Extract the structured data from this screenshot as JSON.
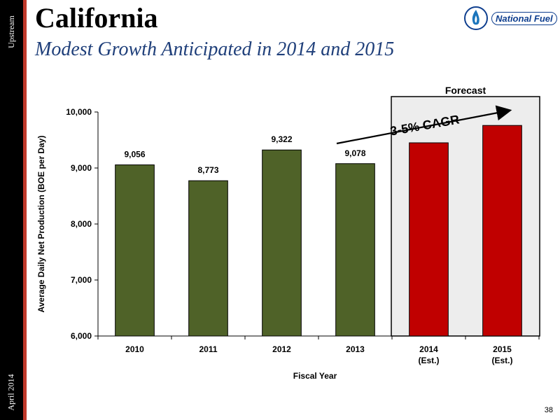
{
  "sidebar": {
    "top_label": "Upstream",
    "bottom_label": "April 2014"
  },
  "header": {
    "title": "California",
    "subtitle": "Modest Growth Anticipated in 2014 and 2015"
  },
  "logo": {
    "text": "National Fuel"
  },
  "page_number": "38",
  "colors": {
    "actual": "#4f6228",
    "forecast": "#c00000",
    "forecast_box": "#ededed",
    "subtitle": "#1f3f7a",
    "sidebar_stripe": "#c0392b"
  },
  "chart_data": {
    "type": "bar",
    "categories": [
      "2010",
      "2011",
      "2012",
      "2013",
      "2014\n(Est.)",
      "2015\n(Est.)"
    ],
    "values": [
      9056,
      8773,
      9322,
      9078,
      9450,
      9760
    ],
    "data_labels": [
      "9,056",
      "8,773",
      "9,322",
      "9,078",
      "",
      ""
    ],
    "is_forecast": [
      false,
      false,
      false,
      false,
      true,
      true
    ],
    "xlabel": "Fiscal Year",
    "ylabel": "Average Daily Net Production (BOE per Day)",
    "ylim": [
      6000,
      10000
    ],
    "yticks": [
      6000,
      7000,
      8000,
      9000,
      10000
    ],
    "ytick_labels": [
      "6,000",
      "7,000",
      "8,000",
      "9,000",
      "10,000"
    ],
    "forecast_label": "Forecast",
    "annotation": "3-5% CAGR",
    "grid": false,
    "legend": "none"
  }
}
